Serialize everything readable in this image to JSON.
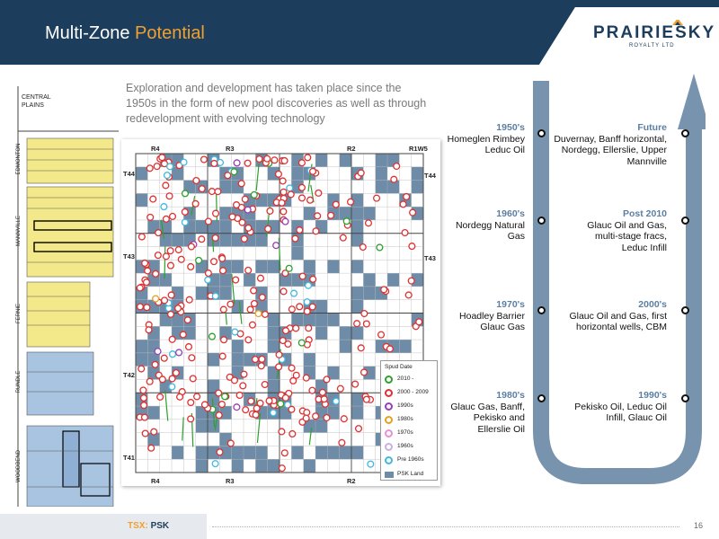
{
  "header": {
    "title_main": "Multi-Zone",
    "title_accent": "Potential",
    "logo_name": "PRAIRIESKY",
    "logo_sub": "ROYALTY LTD",
    "band_color": "#1c3e5c",
    "accent_color": "#f0a030"
  },
  "intro": "Exploration and development has taken place since the 1950s in the form of new pool discoveries as well as through redevelopment with evolving technology",
  "strat_column": {
    "labels": [
      "CENTRAL PLAINS",
      "EDMONTON",
      "MANNVILLE",
      "FERNIE",
      "RUNDLE",
      "WOODBEND"
    ]
  },
  "map": {
    "range_labels_top": [
      "R4",
      "R3",
      "R2",
      "R1W5"
    ],
    "range_labels_bottom": [
      "R4",
      "R3",
      "R2"
    ],
    "township_left": [
      "T44",
      "T43",
      "T42",
      "T41"
    ],
    "township_right": [
      "T44",
      "T43"
    ],
    "legend": {
      "title": "Spud Date",
      "items": [
        {
          "label": "2010 -",
          "color": "#2ea02e"
        },
        {
          "label": "2000 - 2009",
          "color": "#e03030"
        },
        {
          "label": "1990s",
          "color": "#9a3db8"
        },
        {
          "label": "1980s",
          "color": "#e8a020"
        },
        {
          "label": "1970s",
          "color": "#e890d0"
        },
        {
          "label": "1960s",
          "color": "#c8b0e0"
        },
        {
          "label": "Pre 1960s",
          "color": "#40b8e0"
        }
      ],
      "land_label": "PSK Land",
      "land_color": "#6e8ca8"
    }
  },
  "eras": {
    "e1950": {
      "year": "1950's",
      "text": "Homeglen Rimbey Leduc Oil"
    },
    "e1960": {
      "year": "1960's",
      "text": "Nordegg Natural Gas"
    },
    "e1970": {
      "year": "1970's",
      "text": "Hoadley Barrier Glauc Gas"
    },
    "e1980": {
      "year": "1980's",
      "text": "Glauc Gas, Banff, Pekisko and Ellerslie Oil"
    },
    "e1990": {
      "year": "1990's",
      "text": "Pekisko Oil, Leduc Oil Infill, Glauc Oil"
    },
    "e2000": {
      "year": "2000's",
      "text": "Glauc Oil and Gas, first horizontal wells, CBM"
    },
    "e2010": {
      "year": "Post 2010",
      "text": "Glauc Oil and Gas, multi-stage fracs, Leduc Infill"
    },
    "future": {
      "year": "Future",
      "text": "Duvernay, Banff horizontal, Nordegg, Ellerslie, Upper Mannville"
    }
  },
  "footer": {
    "ticker_label": "TSX:",
    "ticker_symbol": "PSK",
    "page_number": "16"
  }
}
